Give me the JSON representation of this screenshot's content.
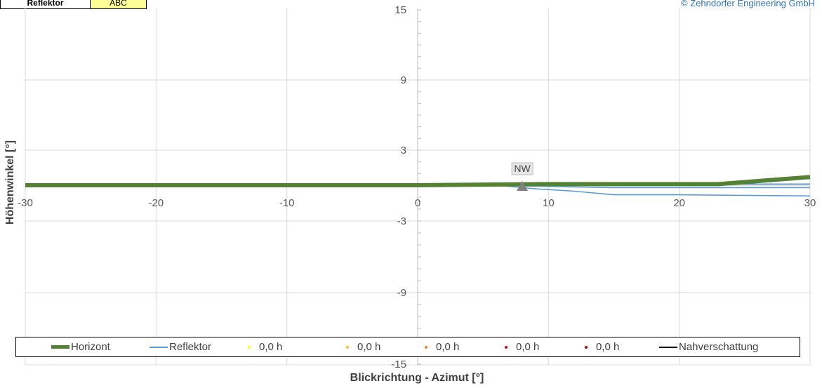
{
  "header": {
    "tag_label": "Reflektor",
    "tag_value": "ABC",
    "copyright": "© Zehndorfer Engineering GmbH"
  },
  "colors": {
    "horizont": "#548235",
    "reflektor": "#5b9bd5",
    "marker": "#808080",
    "nahverschattung": "#000000",
    "dot_yellow": "#ffff00",
    "dot_amber": "#ffc000",
    "dot_orange": "#ed7d31",
    "dot_red": "#e00000",
    "dot_darkred": "#c00000",
    "axis_text": "#595959",
    "gridline": "#d9d9d9"
  },
  "chart_data": {
    "type": "line",
    "xlabel": "Blickrichtung - Azimut [°]",
    "ylabel": "Höhenwinkel [°]",
    "xlim": [
      -30,
      30
    ],
    "ylim": [
      -15,
      15
    ],
    "x_ticks": [
      -30,
      -20,
      -10,
      0,
      10,
      20,
      30
    ],
    "y_ticks": [
      15,
      9,
      3,
      -3,
      -9,
      -15
    ],
    "grid": true,
    "legend_position": "bottom",
    "series": [
      {
        "name": "Horizont",
        "x": [
          -30,
          -10,
          0,
          10,
          20,
          23,
          30
        ],
        "y": [
          0.0,
          0.0,
          0.0,
          0.1,
          0.1,
          0.1,
          0.7
        ]
      },
      {
        "name": "Reflektor",
        "x": [
          6,
          10,
          15,
          20,
          30
        ],
        "y": [
          0.0,
          0.1,
          0.1,
          0.1,
          0.1
        ]
      },
      {
        "name": "Reflektor",
        "x": [
          6,
          10,
          15,
          20,
          30
        ],
        "y": [
          0.0,
          -0.1,
          -0.2,
          -0.2,
          -0.2
        ]
      },
      {
        "name": "Reflektor",
        "x": [
          6,
          9,
          12,
          14,
          15,
          20,
          30
        ],
        "y": [
          0.0,
          -0.3,
          -0.5,
          -0.7,
          -0.8,
          -0.8,
          -0.9
        ]
      }
    ],
    "marker": {
      "label": "NW",
      "x": 8,
      "y": 0
    },
    "legend": [
      {
        "label": "Horizont",
        "kind": "thick-line",
        "color": "#548235"
      },
      {
        "label": "Reflektor",
        "kind": "line",
        "color": "#5b9bd5"
      },
      {
        "label": "0,0 h",
        "kind": "dot",
        "color": "#ffff00"
      },
      {
        "label": "0,0 h",
        "kind": "dot",
        "color": "#ffc000"
      },
      {
        "label": "0,0 h",
        "kind": "dot",
        "color": "#ed7d31"
      },
      {
        "label": "0,0 h",
        "kind": "dot",
        "color": "#e00000"
      },
      {
        "label": "0,0 h",
        "kind": "dot",
        "color": "#c00000"
      },
      {
        "label": "Nahverschattung",
        "kind": "line",
        "color": "#000000"
      }
    ]
  }
}
